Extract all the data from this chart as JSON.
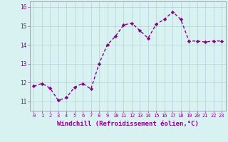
{
  "x": [
    0,
    1,
    2,
    3,
    4,
    5,
    6,
    7,
    8,
    9,
    10,
    11,
    12,
    13,
    14,
    15,
    16,
    17,
    18,
    19,
    20,
    21,
    22,
    23
  ],
  "y": [
    11.8,
    11.95,
    11.7,
    11.05,
    11.2,
    11.75,
    11.95,
    11.65,
    13.0,
    14.0,
    14.45,
    15.05,
    15.15,
    14.75,
    14.35,
    15.1,
    15.35,
    15.75,
    15.35,
    14.2,
    14.2,
    14.15,
    14.2,
    14.2
  ],
  "line_color": "#880088",
  "marker": "D",
  "marker_size": 2.2,
  "background_color": "#d8f2f2",
  "grid_color": "#aab8cc",
  "xlabel": "Windchill (Refroidissement éolien,°C)",
  "xlabel_color": "#880088",
  "ylim": [
    10.5,
    16.3
  ],
  "xlim": [
    -0.5,
    23.5
  ],
  "yticks": [
    11,
    12,
    13,
    14,
    15,
    16
  ],
  "xticks": [
    0,
    1,
    2,
    3,
    4,
    5,
    6,
    7,
    8,
    9,
    10,
    11,
    12,
    13,
    14,
    15,
    16,
    17,
    18,
    19,
    20,
    21,
    22,
    23
  ],
  "tick_label_color": "#880088",
  "tick_fontsize": 5.0,
  "xlabel_fontsize": 6.5,
  "line_width": 1.0,
  "spine_color": "#888899"
}
